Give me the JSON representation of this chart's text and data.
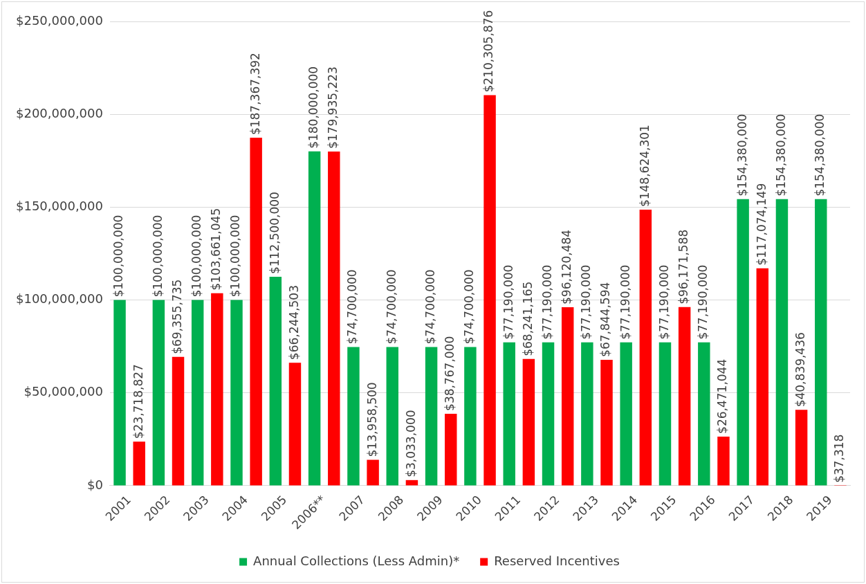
{
  "chart_data": {
    "type": "bar",
    "categories": [
      "2001",
      "2002",
      "2003",
      "2004",
      "2005",
      "2006**",
      "2007",
      "2008",
      "2009",
      "2010",
      "2011",
      "2012",
      "2013",
      "2014",
      "2015",
      "2016",
      "2017",
      "2018",
      "2019"
    ],
    "series": [
      {
        "name": "Annual Collections (Less Admin)*",
        "color": "#00b050",
        "values": [
          100000000,
          100000000,
          100000000,
          100000000,
          112500000,
          180000000,
          74700000,
          74700000,
          74700000,
          74700000,
          77190000,
          77190000,
          77190000,
          77190000,
          77190000,
          77190000,
          154380000,
          154380000,
          154380000
        ],
        "value_labels": [
          "$100,000,000",
          "$100,000,000",
          "$100,000,000",
          "$100,000,000",
          "$112,500,000",
          "$180,000,000",
          "$74,700,000",
          "$74,700,000",
          "$74,700,000",
          "$74,700,000",
          "$77,190,000",
          "$77,190,000",
          "$77,190,000",
          "$77,190,000",
          "$77,190,000",
          "$77,190,000",
          "$154,380,000",
          "$154,380,000",
          "$154,380,000"
        ]
      },
      {
        "name": "Reserved Incentives",
        "color": "#ff0000",
        "values": [
          23718827,
          69355735,
          103661045,
          187367392,
          66244503,
          179935223,
          13958500,
          3033000,
          38767000,
          210305876,
          68241165,
          96120484,
          67844594,
          148624301,
          96171588,
          26471044,
          117074149,
          40839436,
          37318
        ],
        "value_labels": [
          "$23,718,827",
          "$69,355,735",
          "$103,661,045",
          "$187,367,392",
          "$66,244,503",
          "$179,935,223",
          "$13,958,500",
          "$3,033,000",
          "$38,767,000",
          "$210,305,876",
          "$68,241,165",
          "$96,120,484",
          "$67,844,594",
          "$148,624,301",
          "$96,171,588",
          "$26,471,044",
          "$117,074,149",
          "$40,839,436",
          "$37,318"
        ]
      }
    ],
    "ylim": [
      0,
      250000000
    ],
    "yticks": [
      {
        "value": 0,
        "label": "$0"
      },
      {
        "value": 50000000,
        "label": "$50,000,000"
      },
      {
        "value": 100000000,
        "label": "$100,000,000"
      },
      {
        "value": 150000000,
        "label": "$150,000,000"
      },
      {
        "value": 200000000,
        "label": "$200,000,000"
      },
      {
        "value": 250000000,
        "label": "$250,000,000"
      }
    ],
    "grid": "y",
    "legend": "bottom"
  }
}
